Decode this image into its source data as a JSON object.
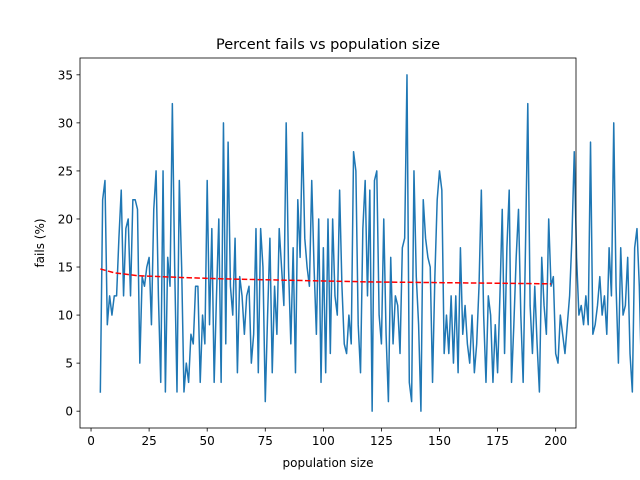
{
  "chart_data": {
    "type": "line",
    "title": "Percent fails vs population size",
    "xlabel": "population size",
    "ylabel": "fails (%)",
    "xlim": [
      -4.75,
      208.75
    ],
    "ylim": [
      -1.75,
      36.75
    ],
    "xticks": [
      0,
      25,
      50,
      75,
      100,
      125,
      150,
      175,
      200
    ],
    "yticks": [
      0,
      5,
      10,
      15,
      20,
      25,
      30,
      35
    ],
    "x_tick_labels": [
      "0",
      "25",
      "50",
      "75",
      "100",
      "125",
      "150",
      "175",
      "200"
    ],
    "y_tick_labels": [
      "0",
      "5",
      "10",
      "15",
      "20",
      "25",
      "30",
      "35"
    ],
    "grid": false,
    "series": [
      {
        "color": "#1f77b4",
        "style": "solid",
        "x_start": 4,
        "x_step": 1,
        "values": [
          2,
          22,
          24,
          9,
          12,
          10,
          12,
          12,
          18,
          23,
          12,
          19,
          20,
          12,
          22,
          22,
          21,
          5,
          14,
          13,
          15,
          16,
          9,
          21,
          25,
          12,
          3,
          25,
          2,
          16,
          13,
          32,
          15,
          2,
          24,
          15,
          2,
          5,
          3,
          8,
          7,
          13,
          13,
          3,
          10,
          7,
          24,
          9,
          19,
          3,
          12,
          20,
          3,
          30,
          7,
          28,
          13,
          10,
          18,
          4,
          14,
          12,
          8,
          12,
          13,
          5,
          8,
          19,
          4,
          19,
          15,
          1,
          10,
          18,
          4,
          13,
          8,
          19,
          15,
          11,
          30,
          15,
          7,
          17,
          4,
          22,
          16,
          29,
          18,
          15,
          13,
          24,
          15,
          8,
          20,
          3,
          17,
          4,
          20,
          6,
          20,
          12,
          10,
          23,
          13,
          7,
          6,
          10,
          7,
          27,
          25,
          9,
          4,
          19,
          24,
          12,
          23,
          0,
          24,
          25,
          10,
          7,
          20,
          8,
          1,
          16,
          7,
          12,
          11,
          6,
          17,
          18,
          35,
          3,
          1,
          25,
          14,
          9,
          0,
          22,
          18,
          16,
          15,
          3,
          14,
          22,
          25,
          23,
          6,
          10,
          6,
          12,
          5,
          12,
          4,
          17,
          8,
          11,
          7,
          5,
          10,
          4,
          7,
          13,
          23,
          10,
          3,
          12,
          10,
          3,
          9,
          4,
          12,
          21,
          6,
          17,
          23,
          3,
          9,
          16,
          21,
          10,
          3,
          17,
          32,
          11,
          6,
          13,
          7,
          2,
          16,
          11,
          8,
          20,
          13,
          14,
          6,
          5,
          10,
          8,
          6,
          9,
          12,
          18,
          27,
          16,
          10,
          11,
          9,
          12,
          9,
          28,
          8,
          9,
          11,
          14,
          10,
          12,
          8,
          17,
          12,
          30,
          13,
          5,
          17,
          10,
          11,
          16,
          6,
          2,
          17,
          19,
          13,
          3,
          11,
          13,
          9,
          14,
          15,
          19,
          12,
          13,
          21,
          10,
          15,
          12,
          12,
          26,
          6,
          12,
          18,
          11,
          30,
          7,
          11,
          18,
          13,
          16,
          9,
          14,
          28,
          9,
          8,
          18,
          13,
          3,
          16,
          8,
          12,
          12,
          6,
          10,
          12,
          10,
          12,
          11,
          10,
          11,
          9,
          11,
          10,
          12,
          9,
          13,
          11,
          12,
          9,
          12,
          11,
          10,
          12,
          12,
          12,
          10,
          11,
          11,
          13,
          12
        ]
      },
      {
        "color": "#ff0000",
        "style": "dashed",
        "x": [
          4,
          10,
          20,
          40,
          60,
          80,
          100,
          120,
          140,
          160,
          180,
          198
        ],
        "values": [
          14.8,
          14.4,
          14.1,
          13.9,
          13.75,
          13.65,
          13.55,
          13.45,
          13.4,
          13.35,
          13.3,
          13.25
        ]
      }
    ]
  }
}
